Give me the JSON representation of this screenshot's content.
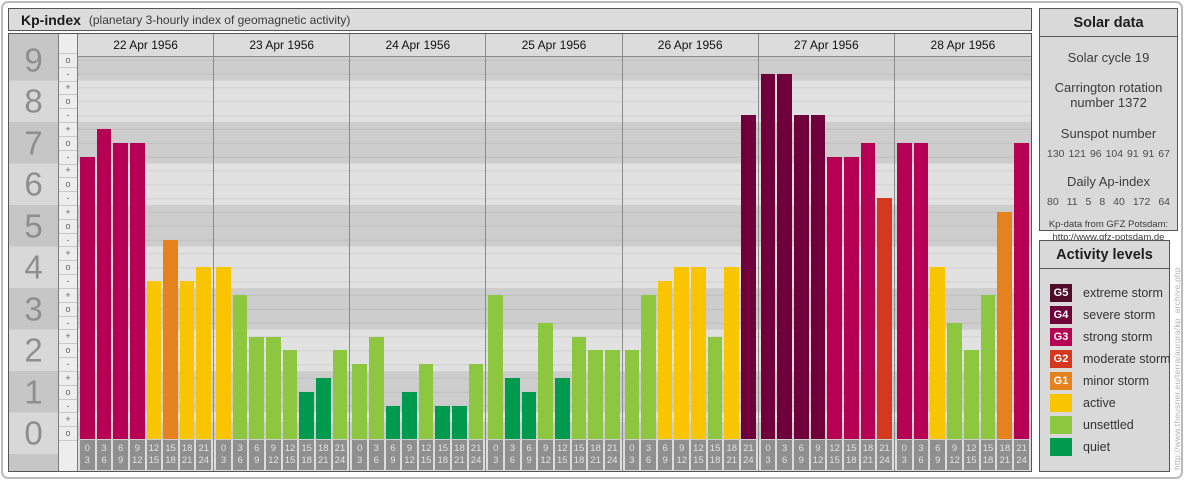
{
  "header": {
    "title": "Kp-index",
    "subtitle": "(planetary 3-hourly index of geomagnetic activity)"
  },
  "y_axis": {
    "numbers": [
      "9",
      "8",
      "7",
      "6",
      "5",
      "4",
      "3",
      "2",
      "1",
      "0"
    ],
    "markers": [
      "o",
      "-",
      "+",
      "o",
      "-",
      "+",
      "o",
      "-",
      "+",
      "o",
      "-",
      "+",
      "o",
      "-",
      "+",
      "o",
      "-",
      "+",
      "o",
      "-",
      "+",
      "o",
      "-",
      "+",
      "o",
      "-",
      "+",
      "o"
    ]
  },
  "chart_data": {
    "type": "bar",
    "title": "Kp-index (planetary 3-hourly index of geomagnetic activity)",
    "ylabel": "Kp",
    "ylim": [
      0,
      9.5
    ],
    "grid": "on",
    "legend_position": "right",
    "interval_labels": [
      [
        "0",
        "3"
      ],
      [
        "3",
        "6"
      ],
      [
        "6",
        "9"
      ],
      [
        "9",
        "12"
      ],
      [
        "12",
        "15"
      ],
      [
        "15",
        "18"
      ],
      [
        "18",
        "21"
      ],
      [
        "21",
        "24"
      ]
    ],
    "days": [
      {
        "date": "22 Apr 1956",
        "kp": [
          6.67,
          7.33,
          7,
          7,
          3.67,
          4.67,
          3.67,
          4
        ],
        "kp_notation": [
          "7-",
          "7+",
          "7o",
          "7o",
          "4-",
          "5-",
          "4-",
          "4o"
        ],
        "levels": [
          "G3",
          "G3",
          "G3",
          "G3",
          "active",
          "G1",
          "active",
          "active"
        ]
      },
      {
        "date": "23 Apr 1956",
        "kp": [
          4,
          3.33,
          2.33,
          2.33,
          2,
          1,
          1.33,
          2
        ],
        "kp_notation": [
          "4o",
          "3+",
          "2+",
          "2+",
          "2o",
          "1o",
          "1+",
          "2o"
        ],
        "levels": [
          "active",
          "unsettled",
          "unsettled",
          "unsettled",
          "unsettled",
          "quiet",
          "quiet",
          "unsettled"
        ]
      },
      {
        "date": "24 Apr 1956",
        "kp": [
          1.67,
          2.33,
          0.67,
          1,
          1.67,
          0.67,
          0.67,
          1.67
        ],
        "kp_notation": [
          "2-",
          "2+",
          "1-",
          "1o",
          "2-",
          "1-",
          "1-",
          "2-"
        ],
        "levels": [
          "unsettled",
          "unsettled",
          "quiet",
          "quiet",
          "unsettled",
          "quiet",
          "quiet",
          "unsettled"
        ]
      },
      {
        "date": "25 Apr 1956",
        "kp": [
          3.33,
          1.33,
          1,
          2.67,
          1.33,
          2.33,
          2,
          2
        ],
        "kp_notation": [
          "3+",
          "1+",
          "1o",
          "3-",
          "1+",
          "2+",
          "2o",
          "2o"
        ],
        "levels": [
          "unsettled",
          "quiet",
          "quiet",
          "unsettled",
          "quiet",
          "unsettled",
          "unsettled",
          "unsettled"
        ]
      },
      {
        "date": "26 Apr 1956",
        "kp": [
          2,
          3.33,
          3.67,
          4,
          4,
          2.33,
          4,
          7.67
        ],
        "kp_notation": [
          "2o",
          "3+",
          "4-",
          "4o",
          "4o",
          "2+",
          "4o",
          "8-"
        ],
        "levels": [
          "unsettled",
          "unsettled",
          "active",
          "active",
          "active",
          "unsettled",
          "active",
          "G4"
        ]
      },
      {
        "date": "27 Apr 1956",
        "kp": [
          8.67,
          8.67,
          7.67,
          7.67,
          6.67,
          6.67,
          7,
          5.67
        ],
        "kp_notation": [
          "9-",
          "9-",
          "8-",
          "8-",
          "7-",
          "7-",
          "7o",
          "6-"
        ],
        "levels": [
          "G4",
          "G4",
          "G4",
          "G4",
          "G3",
          "G3",
          "G3",
          "G2"
        ]
      },
      {
        "date": "28 Apr 1956",
        "kp": [
          7,
          7,
          4,
          2.67,
          2,
          3.33,
          5.33,
          7
        ],
        "kp_notation": [
          "7o",
          "7o",
          "4o",
          "3-",
          "2o",
          "3+",
          "5+",
          "7o"
        ],
        "levels": [
          "G3",
          "G3",
          "active",
          "unsettled",
          "unsettled",
          "unsettled",
          "G1",
          "G3"
        ]
      }
    ]
  },
  "level_colors": {
    "G5": "#4f0d29",
    "G4": "#70003c",
    "G3": "#b50053",
    "G2": "#d4381e",
    "G1": "#e5821e",
    "active": "#f8c500",
    "unsettled": "#8dc63f",
    "quiet": "#009a4e"
  },
  "solar_data": {
    "title": "Solar data",
    "cycle": "Solar cycle 19",
    "carrington_line1": "Carrington rotation",
    "carrington_line2": "number 1372",
    "sunspot_title": "Sunspot number",
    "sunspot_values": [
      "130",
      "121",
      "96",
      "104",
      "91",
      "91",
      "67"
    ],
    "ap_title": "Daily Ap-index",
    "ap_values": [
      "80",
      "11",
      "5",
      "8",
      "40",
      "172",
      "64"
    ],
    "credit_line1": "Kp-data from GFZ Potsdam:",
    "credit_line2": "http://www.gfz-potsdam.de"
  },
  "activity_levels": {
    "title": "Activity levels",
    "items": [
      {
        "key": "G5",
        "code": "G5",
        "label": "extreme storm"
      },
      {
        "key": "G4",
        "code": "G4",
        "label": "severe storm"
      },
      {
        "key": "G3",
        "code": "G3",
        "label": "strong storm"
      },
      {
        "key": "G2",
        "code": "G2",
        "label": "moderate storm"
      },
      {
        "key": "G1",
        "code": "G1",
        "label": "minor storm"
      },
      {
        "key": "active",
        "code": "",
        "label": "active"
      },
      {
        "key": "unsettled",
        "code": "",
        "label": "unsettled"
      },
      {
        "key": "quiet",
        "code": "",
        "label": "quiet"
      }
    ]
  },
  "watermark": "http://www.theusner.eu/terra/aurora/kp_archive.php"
}
